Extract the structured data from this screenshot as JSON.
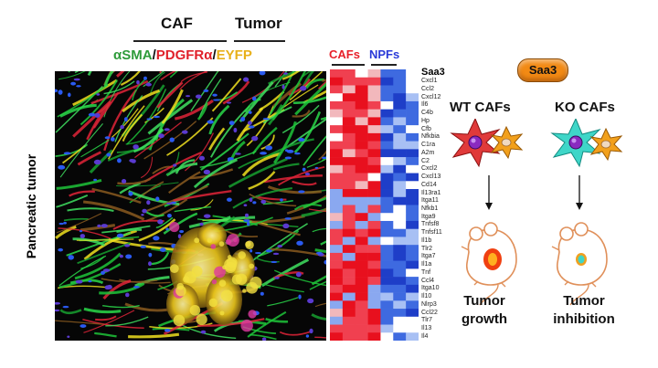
{
  "header": {
    "caf": "CAF",
    "tumor": "Tumor",
    "markers": [
      {
        "text": "αSMA",
        "color": "#2e9b3a"
      },
      {
        "text": "/",
        "color": "#111111"
      },
      {
        "text": "PDGFRα",
        "color": "#e0202a"
      },
      {
        "text": "/",
        "color": "#111111"
      },
      {
        "text": "EYFP",
        "color": "#e8b01a"
      }
    ]
  },
  "side_label": "Pancreatic tumor",
  "heatmap": {
    "groups": [
      {
        "label": "CAFs",
        "color": "#e8202a"
      },
      {
        "label": "NPFs",
        "color": "#2a3ad8"
      }
    ],
    "genes": [
      "Saa3",
      "Cxcl1",
      "Ccl2",
      "Cxcl12",
      "Il6",
      "C4b",
      "Hp",
      "Cfb",
      "Nfkbia",
      "C1ra",
      "A2m",
      "C2",
      "Cxcl2",
      "Cxcl13",
      "Cd14",
      "Il13ra1",
      "Itga11",
      "Nfkb1",
      "Itga9",
      "Tnfsf8",
      "Tnfsf11",
      "Il1b",
      "Tlr2",
      "Itga7",
      "Il1a",
      "Tnf",
      "Ccl4",
      "Itga10",
      "Il10",
      "Nlrp3",
      "Ccl22",
      "Tlr7",
      "Il13",
      "Il4"
    ]
  },
  "right_panel": {
    "badge": "Saa3",
    "wt_label": "WT CAFs",
    "ko_label": "KO CAFs",
    "wt_outcome": [
      "Tumor",
      "growth"
    ],
    "ko_outcome": [
      "Tumor",
      "inhibition"
    ],
    "colors": {
      "wt_cell": "#e03a3a",
      "ko_cell": "#3fd6c8",
      "tumor_cell": "#f2a01c",
      "badge": "#f28a14"
    }
  }
}
